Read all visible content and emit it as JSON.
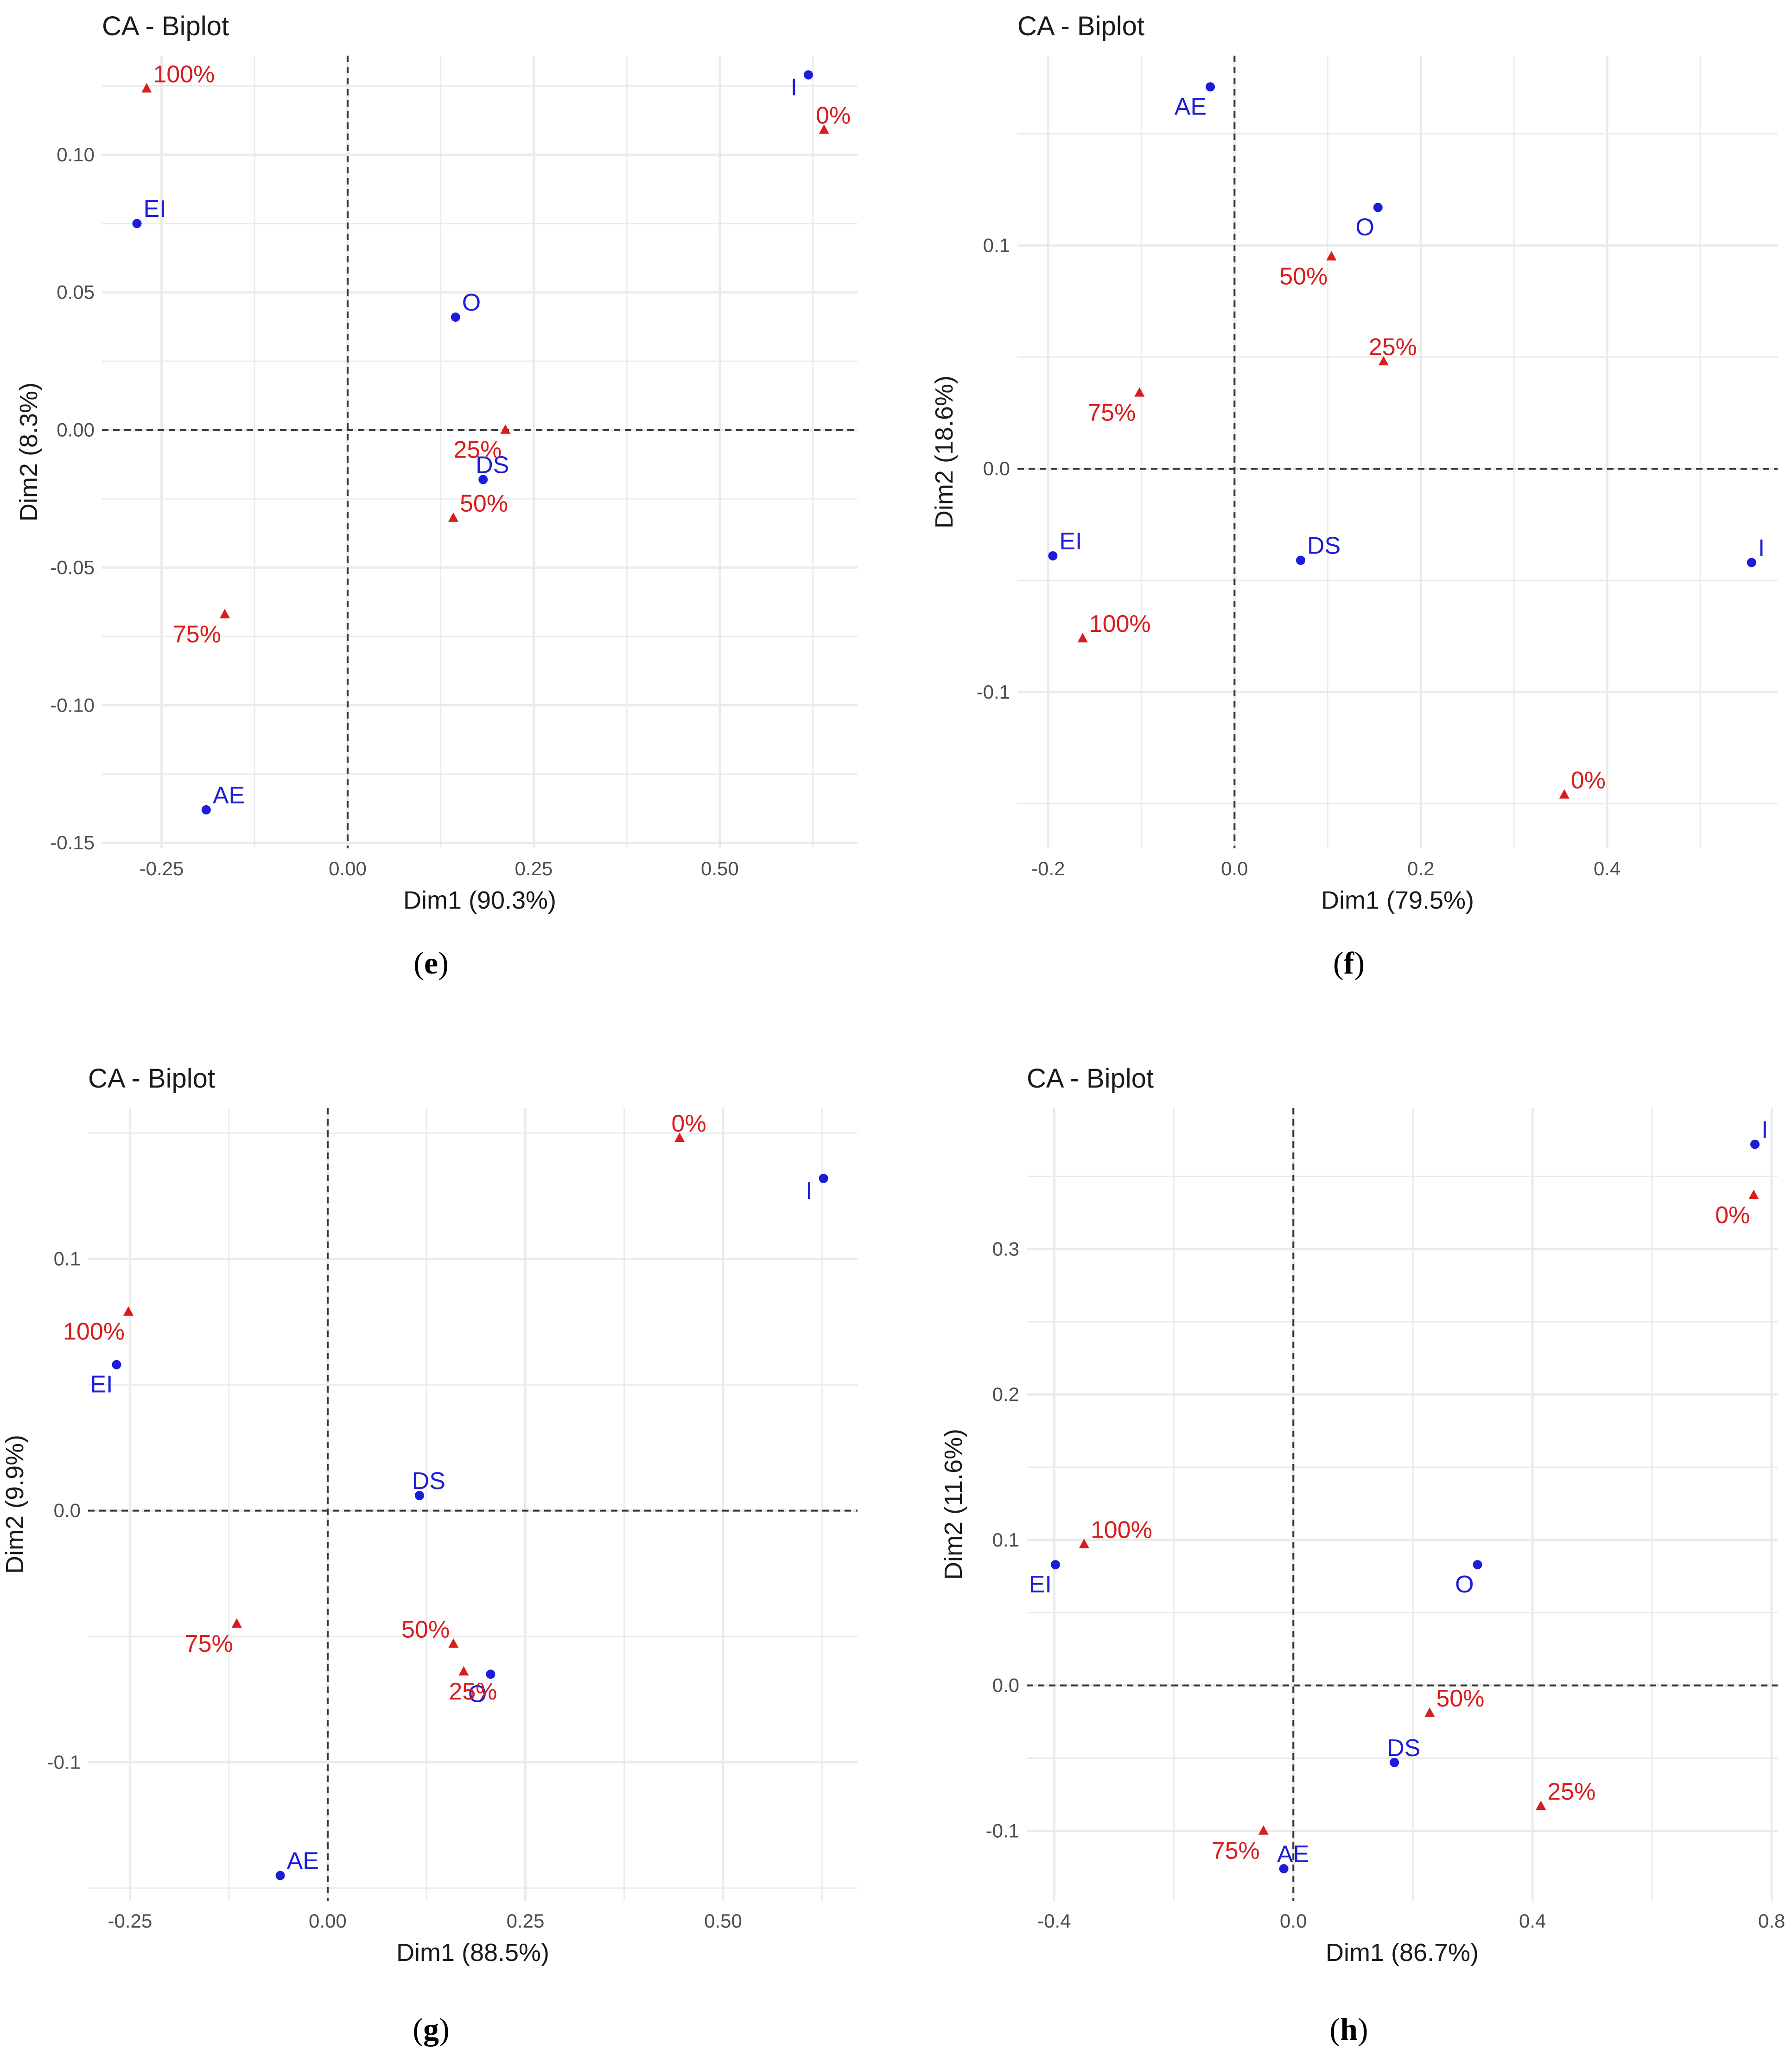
{
  "colors": {
    "row": "#1c1cd9",
    "col": "#d91c1c",
    "grid": "#ebebeb",
    "zero": "#333333"
  },
  "chart_data": [
    {
      "type": "scatter",
      "panel": "e",
      "title": "CA - Biplot",
      "xlabel": "Dim1 (90.3%)",
      "ylabel": "Dim2 (8.3%)",
      "xlim": [
        -0.33,
        0.685
      ],
      "ylim": [
        -0.152,
        0.136
      ],
      "xticks": [
        -0.25,
        0.0,
        0.25,
        0.5
      ],
      "xtick_labels": [
        "-0.25",
        "0.00",
        "0.25",
        "0.50"
      ],
      "yticks": [
        -0.15,
        -0.1,
        -0.05,
        0.0,
        0.05,
        0.1
      ],
      "ytick_labels": [
        "-0.15",
        "-0.10",
        "-0.05",
        "0.00",
        "0.05",
        "0.10"
      ],
      "series": [
        {
          "name": "rows",
          "marker": "circle",
          "color": "#1c1cd9",
          "points": [
            {
              "label": "I",
              "x": 0.619,
              "y": 0.129,
              "dx": -12,
              "dy": 1.0
            },
            {
              "label": "EI",
              "x": -0.283,
              "y": 0.075,
              "dx": 0.3,
              "dy": 0.6
            },
            {
              "label": "O",
              "x": 0.145,
              "y": 0.041,
              "dx": 0.4,
              "dy": 0.6
            },
            {
              "label": "DS",
              "x": 0.182,
              "y": -0.018,
              "dx": 0.0,
              "dy": 0.4
            },
            {
              "label": "AE",
              "x": -0.19,
              "y": -0.138,
              "dx": 0.3,
              "dy": 0.6
            }
          ]
        },
        {
          "name": "columns",
          "marker": "triangle",
          "color": "#d91c1c",
          "points": [
            {
              "label": "100%",
              "x": -0.27,
              "y": 0.124,
              "dx": 0.4,
              "dy": 0.6
            },
            {
              "label": "0%",
              "x": 0.64,
              "y": 0.109,
              "dx": 0.1,
              "dy": 0.6
            },
            {
              "label": "25%",
              "x": 0.212,
              "y": 0.0,
              "dx": -0.4,
              "dy": -0.7
            },
            {
              "label": "50%",
              "x": 0.142,
              "y": -0.032,
              "dx": 0.4,
              "dy": 0.6
            },
            {
              "label": "75%",
              "x": -0.165,
              "y": -0.067,
              "dx": -0.4,
              "dy": -0.7
            }
          ]
        }
      ]
    },
    {
      "type": "scatter",
      "panel": "f",
      "title": "CA - Biplot",
      "xlabel": "Dim1 (79.5%)",
      "ylabel": "Dim2 (18.6%)",
      "xlim": [
        -0.233,
        0.583
      ],
      "ylim": [
        -0.17,
        0.185
      ],
      "xticks": [
        -0.2,
        0.0,
        0.2,
        0.4
      ],
      "xtick_labels": [
        "-0.2",
        "0.0",
        "0.2",
        "0.4"
      ],
      "yticks": [
        -0.1,
        0.0,
        0.1
      ],
      "ytick_labels": [
        "-0.1",
        "0.0",
        "0.1"
      ],
      "series": [
        {
          "name": "rows",
          "marker": "circle",
          "color": "#1c1cd9",
          "points": [
            {
              "label": "AE",
              "x": -0.026,
              "y": 0.171,
              "dx": -0.4,
              "dy": -0.7
            },
            {
              "label": "O",
              "x": 0.154,
              "y": 0.117,
              "dx": -0.4,
              "dy": -0.7
            },
            {
              "label": "EI",
              "x": -0.195,
              "y": -0.039,
              "dx": 0.3,
              "dy": 0.6
            },
            {
              "label": "DS",
              "x": 0.071,
              "y": -0.041,
              "dx": 0.2,
              "dy": 0.6
            },
            {
              "label": "I",
              "x": 0.555,
              "y": -0.042,
              "dx": 0.4,
              "dy": 0.6
            }
          ]
        },
        {
          "name": "columns",
          "marker": "triangle",
          "color": "#d91c1c",
          "points": [
            {
              "label": "50%",
              "x": 0.104,
              "y": 0.095,
              "dx": -0.4,
              "dy": -0.7
            },
            {
              "label": "25%",
              "x": 0.16,
              "y": 0.048,
              "dx": 0.1,
              "dy": 0.6
            },
            {
              "label": "75%",
              "x": -0.102,
              "y": 0.034,
              "dx": -0.4,
              "dy": -0.7
            },
            {
              "label": "100%",
              "x": -0.163,
              "y": -0.076,
              "dx": 0.4,
              "dy": 0.6
            },
            {
              "label": "0%",
              "x": 0.354,
              "y": -0.146,
              "dx": 0.3,
              "dy": 0.6
            }
          ]
        }
      ]
    },
    {
      "type": "scatter",
      "panel": "g",
      "title": "CA - Biplot",
      "xlabel": "Dim1 (88.5%)",
      "ylabel": "Dim2 (9.9%)",
      "xlim": [
        -0.303,
        0.67
      ],
      "ylim": [
        -0.155,
        0.16
      ],
      "xticks": [
        -0.25,
        0.0,
        0.25,
        0.5
      ],
      "xtick_labels": [
        "-0.25",
        "0.00",
        "0.25",
        "0.50"
      ],
      "yticks": [
        -0.1,
        0.0,
        0.1
      ],
      "ytick_labels": [
        "-0.1",
        "0.0",
        "0.1"
      ],
      "series": [
        {
          "name": "rows",
          "marker": "circle",
          "color": "#1c1cd9",
          "points": [
            {
              "label": "I",
              "x": 0.627,
              "y": 0.132,
              "dx": -12,
              "dy": 1.0
            },
            {
              "label": "EI",
              "x": -0.267,
              "y": 0.058,
              "dx": -0.4,
              "dy": -0.7
            },
            {
              "label": "DS",
              "x": 0.116,
              "y": 0.006,
              "dx": 0.1,
              "dy": 0.6
            },
            {
              "label": "O",
              "x": 0.206,
              "y": -0.065,
              "dx": -0.4,
              "dy": -0.7
            },
            {
              "label": "AE",
              "x": -0.06,
              "y": -0.145,
              "dx": 0.3,
              "dy": 0.6
            }
          ]
        },
        {
          "name": "columns",
          "marker": "triangle",
          "color": "#d91c1c",
          "points": [
            {
              "label": "0%",
              "x": 0.445,
              "y": 0.148,
              "dx": 0.1,
              "dy": 0.6
            },
            {
              "label": "100%",
              "x": -0.252,
              "y": 0.079,
              "dx": -0.4,
              "dy": -0.7
            },
            {
              "label": "75%",
              "x": -0.115,
              "y": -0.045,
              "dx": -0.4,
              "dy": -0.7
            },
            {
              "label": "50%",
              "x": 0.159,
              "y": -0.053,
              "dx": -0.4,
              "dy": 0.6
            },
            {
              "label": "25%",
              "x": 0.172,
              "y": -0.064,
              "dx": 0.0,
              "dy": -0.7
            }
          ]
        }
      ]
    },
    {
      "type": "scatter",
      "panel": "h",
      "title": "CA - Biplot",
      "xlabel": "Dim1 (86.7%)",
      "ylabel": "Dim2 (11.6%)",
      "xlim": [
        -0.446,
        0.81
      ],
      "ylim": [
        -0.148,
        0.397
      ],
      "xticks": [
        -0.4,
        0.0,
        0.4,
        0.8
      ],
      "xtick_labels": [
        "-0.4",
        "0.0",
        "0.4",
        "0.8"
      ],
      "yticks": [
        -0.1,
        0.0,
        0.1,
        0.2,
        0.3
      ],
      "ytick_labels": [
        "-0.1",
        "0.0",
        "0.1",
        "0.2",
        "0.3"
      ],
      "series": [
        {
          "name": "rows",
          "marker": "circle",
          "color": "#1c1cd9",
          "points": [
            {
              "label": "I",
              "x": 0.772,
              "y": 0.372,
              "dx": 0.4,
              "dy": 0.6
            },
            {
              "label": "EI",
              "x": -0.398,
              "y": 0.083,
              "dx": -0.4,
              "dy": -0.7
            },
            {
              "label": "O",
              "x": 0.308,
              "y": 0.083,
              "dx": -0.4,
              "dy": -0.7
            },
            {
              "label": "DS",
              "x": 0.169,
              "y": -0.053,
              "dx": 0.0,
              "dy": 0.6
            },
            {
              "label": "AE",
              "x": -0.016,
              "y": -0.126,
              "dx": 0.0,
              "dy": 0.6
            }
          ]
        },
        {
          "name": "columns",
          "marker": "triangle",
          "color": "#d91c1c",
          "points": [
            {
              "label": "0%",
              "x": 0.77,
              "y": 0.337,
              "dx": -0.4,
              "dy": -0.7
            },
            {
              "label": "100%",
              "x": -0.35,
              "y": 0.097,
              "dx": 0.4,
              "dy": 0.6
            },
            {
              "label": "50%",
              "x": 0.228,
              "y": -0.019,
              "dx": 0.2,
              "dy": 0.6
            },
            {
              "label": "25%",
              "x": 0.414,
              "y": -0.083,
              "dx": 0.2,
              "dy": 0.6
            },
            {
              "label": "75%",
              "x": -0.05,
              "y": -0.1,
              "dx": -0.4,
              "dy": -0.7
            }
          ]
        }
      ]
    }
  ],
  "subfigure_labels": [
    {
      "open": "(",
      "letter": "e",
      "close": ")"
    },
    {
      "open": "(",
      "letter": "f",
      "close": ")"
    },
    {
      "open": "(",
      "letter": "g",
      "close": ")"
    },
    {
      "open": "(",
      "letter": "h",
      "close": ")"
    }
  ]
}
